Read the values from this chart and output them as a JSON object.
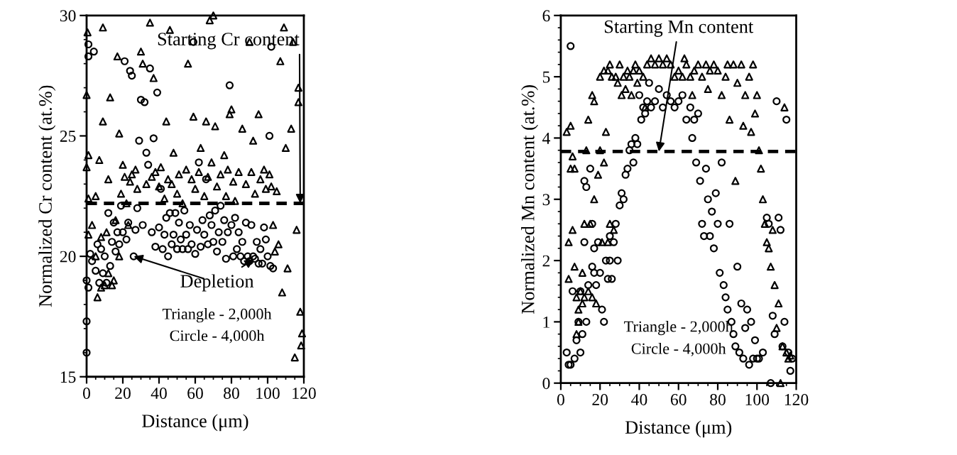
{
  "chart_data": [
    {
      "type": "scatter",
      "xlabel": "Distance (μm)",
      "ylabel": "Normalized Cr content (at.%)",
      "xlim": [
        0,
        120
      ],
      "ylim": [
        15,
        30
      ],
      "xticks": [
        0,
        20,
        40,
        60,
        80,
        100,
        120
      ],
      "yticks": [
        15,
        20,
        25,
        30
      ],
      "grid": false,
      "legend": false,
      "series": [
        {
          "marker": "triangle",
          "color": "#000000",
          "x": [
            0,
            0,
            0.5,
            1,
            1,
            1,
            3,
            5,
            5,
            6,
            7,
            8,
            8,
            9,
            9,
            10,
            11,
            12,
            12,
            13,
            14,
            15,
            16,
            17,
            18,
            18,
            19,
            20,
            21,
            22,
            23,
            24,
            25,
            27,
            28,
            30,
            31,
            33,
            35,
            36,
            37,
            38,
            40,
            41,
            43,
            44,
            45,
            46,
            47,
            48,
            50,
            51,
            53,
            55,
            56,
            58,
            59,
            60,
            62,
            63,
            65,
            66,
            67,
            68,
            69,
            70,
            71,
            72,
            74,
            76,
            77,
            78,
            79,
            80,
            81,
            82,
            84,
            86,
            88,
            90,
            91,
            92,
            93,
            95,
            96,
            98,
            99,
            101,
            102,
            103,
            104,
            105,
            106,
            107,
            108,
            109,
            110,
            111,
            113,
            114,
            115,
            116,
            117,
            117,
            118,
            118.5,
            119
          ],
          "values": [
            26.7,
            23.7,
            29.3,
            24.2,
            22.4,
            20.9,
            21.3,
            20.0,
            22.5,
            18.3,
            24,
            18.7,
            20.8,
            29.5,
            25.6,
            18.8,
            21.0,
            19.3,
            23.2,
            26.6,
            18.8,
            19.0,
            21.5,
            28.3,
            25.1,
            20.0,
            22.6,
            23.8,
            23.3,
            22.2,
            21.3,
            23.1,
            23.4,
            23.6,
            22.8,
            28.5,
            28,
            23.0,
            29.7,
            23.3,
            27.4,
            23.5,
            22.9,
            23.7,
            22.4,
            25.6,
            23.2,
            29.4,
            23.0,
            24.3,
            22.6,
            23.4,
            22.2,
            23.6,
            28,
            23.2,
            25.8,
            22.8,
            23.5,
            24.5,
            22.5,
            25.6,
            23.3,
            29.8,
            23.9,
            30,
            25.4,
            22.9,
            23.4,
            24.2,
            22.5,
            23.6,
            25.9,
            26.1,
            23.1,
            22.3,
            23.5,
            25.3,
            23.0,
            28.9,
            23.5,
            24.8,
            22.6,
            25.9,
            23.2,
            23.6,
            22.8,
            23.4,
            22.9,
            21.3,
            20.2,
            22.7,
            20.5,
            28.1,
            18.5,
            29.5,
            24.5,
            19.5,
            25.3,
            28.9,
            15.8,
            21.1,
            27,
            26.4,
            17.7,
            16.3,
            16.8
          ]
        },
        {
          "marker": "circle",
          "color": "#000000",
          "x": [
            0,
            0,
            0,
            1,
            1,
            1,
            2,
            3,
            4,
            5,
            6,
            7,
            8,
            9,
            10,
            11,
            12,
            13,
            14,
            15,
            16,
            17,
            18,
            19,
            20,
            21,
            22,
            23,
            24,
            25,
            26,
            27,
            28,
            29,
            30,
            31,
            32,
            33,
            34,
            35,
            36,
            37,
            38,
            39,
            40,
            41,
            42,
            43,
            44,
            45,
            46,
            47,
            48,
            49,
            50,
            51,
            52,
            53,
            54,
            55,
            56,
            57,
            58,
            59,
            60,
            61,
            62,
            63,
            64,
            65,
            66,
            67,
            68,
            69,
            70,
            71,
            72,
            73,
            74,
            75,
            76,
            77,
            78,
            79,
            80,
            81,
            82,
            83,
            84,
            85,
            86,
            87,
            88,
            89,
            90,
            91,
            92,
            93,
            94,
            95,
            96,
            97,
            98,
            99,
            100,
            101,
            101.5,
            102,
            103
          ],
          "values": [
            19.0,
            17.3,
            16.0,
            28.8,
            28.3,
            18.7,
            20.1,
            19.8,
            28.5,
            19.4,
            20.5,
            18.9,
            20.3,
            19.3,
            20.0,
            18.9,
            21.8,
            19.6,
            20.6,
            21.4,
            20.2,
            21.0,
            20.5,
            22.1,
            21.0,
            28.1,
            20.7,
            21.4,
            27.7,
            27.5,
            20.0,
            21.1,
            22.0,
            24.8,
            26.5,
            21.3,
            26.4,
            24.3,
            23.8,
            27.8,
            21.0,
            24.9,
            20.4,
            26.8,
            21.2,
            22.8,
            20.3,
            20.9,
            21.6,
            20.0,
            21.8,
            20.5,
            20.9,
            21.8,
            20.3,
            21.4,
            20.7,
            20.3,
            21.9,
            20.9,
            20.3,
            21.3,
            20.5,
            28.9,
            20.1,
            21.1,
            23.9,
            20.4,
            21.5,
            20.9,
            23.2,
            20.5,
            21.7,
            21.3,
            20.6,
            21.9,
            20.2,
            21.0,
            22.1,
            20.6,
            21.5,
            19.9,
            21.0,
            27.1,
            21.3,
            20.0,
            21.6,
            20.3,
            21.0,
            20.0,
            20.6,
            19.8,
            21.4,
            20.0,
            19.8,
            21.3,
            20.0,
            19.9,
            20.6,
            19.7,
            20.3,
            19.7,
            21.2,
            20.7,
            20.0,
            25.0,
            19.6,
            28.7,
            19.5
          ]
        }
      ],
      "ref_lines": [
        {
          "axis": "y",
          "value": 22.2,
          "color": "#000000",
          "line_style": "dashed"
        }
      ],
      "annotations": [
        {
          "text": "Starting Cr content",
          "x": 118,
          "y": 22.2
        },
        {
          "text": "Depletion",
          "x": 26,
          "y": 20.0
        },
        "Triangle - 2,000h",
        "Circle - 4,000h"
      ]
    },
    {
      "type": "scatter",
      "xlabel": "Distance (μm)",
      "ylabel": "Normalized Mn content (at.%)",
      "xlim": [
        0,
        120
      ],
      "ylim": [
        0,
        6
      ],
      "xticks": [
        0,
        20,
        40,
        60,
        80,
        100,
        120
      ],
      "yticks": [
        0,
        1,
        2,
        3,
        4,
        5,
        6
      ],
      "grid": false,
      "legend": false,
      "series": [
        {
          "marker": "triangle",
          "color": "#000000",
          "x": [
            3,
            4,
            4,
            5,
            5,
            6,
            6,
            7,
            7,
            8,
            8,
            9,
            9,
            10,
            11,
            11,
            12,
            12,
            13,
            14,
            14,
            15,
            16,
            16,
            17,
            17,
            18,
            19,
            20,
            20,
            21,
            22,
            22,
            23,
            24,
            24,
            25,
            25,
            26,
            27,
            28,
            29,
            30,
            31,
            32,
            33,
            34,
            35,
            36,
            37,
            38,
            39,
            40,
            42,
            43,
            44,
            46,
            48,
            50,
            52,
            54,
            56,
            58,
            60,
            62,
            63,
            64,
            66,
            67,
            68,
            70,
            72,
            74,
            75,
            76,
            78,
            80,
            82,
            84,
            85,
            86,
            88,
            89,
            90,
            92,
            93,
            94,
            96,
            97,
            98,
            99,
            100,
            101,
            102,
            103,
            104,
            105,
            106,
            107,
            108,
            109,
            110,
            111,
            112,
            113,
            114,
            115,
            116,
            117
          ],
          "values": [
            4.1,
            1.7,
            2.3,
            4.2,
            3.5,
            2.5,
            3.7,
            1.9,
            3.5,
            0.8,
            1.4,
            1.2,
            1.0,
            1.5,
            1.8,
            1.3,
            2.6,
            1.4,
            3.8,
            1.5,
            4.3,
            2.6,
            1.4,
            4.7,
            3.0,
            4.6,
            1.3,
            3.4,
            3.8,
            5.0,
            2.3,
            5.1,
            3.6,
            4.1,
            5.1,
            2.3,
            5.2,
            2.6,
            5.0,
            2.5,
            5.0,
            4.9,
            5.2,
            4.7,
            5.0,
            4.8,
            5.1,
            5.0,
            4.7,
            5.1,
            5.2,
            4.9,
            5.1,
            5.0,
            4.5,
            5.2,
            5.3,
            5.2,
            5.3,
            5.2,
            5.3,
            5.2,
            5.0,
            5.1,
            5.0,
            5.3,
            5.2,
            5.0,
            4.7,
            5.1,
            5.2,
            5.0,
            5.2,
            4.8,
            5.1,
            5.2,
            5.1,
            4.7,
            5.0,
            5.2,
            4.3,
            5.2,
            3.3,
            4.9,
            5.2,
            4.2,
            4.7,
            5.0,
            4.1,
            5.2,
            4.4,
            4.7,
            3.8,
            3.5,
            3.0,
            2.6,
            2.3,
            2.2,
            1.9,
            2.5,
            1.6,
            0.9,
            1.3,
            0.0,
            0.6,
            4.5,
            0.5,
            0.4,
            0.45
          ]
        },
        {
          "marker": "circle",
          "color": "#000000",
          "x": [
            3,
            4,
            5,
            5,
            6,
            7,
            8,
            9,
            10,
            10,
            11,
            12,
            12,
            13,
            13,
            14,
            15,
            16,
            16,
            17,
            17,
            18,
            19,
            20,
            21,
            22,
            23,
            24,
            25,
            25,
            26,
            27,
            28,
            29,
            30,
            31,
            32,
            33,
            34,
            35,
            36,
            37,
            38,
            39,
            40,
            41,
            42,
            43,
            44,
            45,
            46,
            48,
            50,
            52,
            54,
            56,
            58,
            60,
            62,
            64,
            66,
            67,
            68,
            69,
            70,
            71,
            72,
            73,
            74,
            75,
            76,
            77,
            78,
            79,
            80,
            81,
            82,
            83,
            84,
            85,
            86,
            87,
            88,
            89,
            90,
            91,
            92,
            93,
            94,
            95,
            96,
            97,
            98,
            99,
            100,
            101,
            103,
            105,
            106,
            107,
            108,
            109,
            110,
            111,
            112,
            113,
            114,
            115,
            116,
            117,
            118
          ],
          "values": [
            0.5,
            0.3,
            5.5,
            0.3,
            1.5,
            0.4,
            0.7,
            1.0,
            0.5,
            1.5,
            0.8,
            2.3,
            3.3,
            1.0,
            3.2,
            1.6,
            3.5,
            1.9,
            2.6,
            2.2,
            1.8,
            1.6,
            2.3,
            1.8,
            1.2,
            1.0,
            2.0,
            1.7,
            2.0,
            2.4,
            1.7,
            2.3,
            2.6,
            2.0,
            2.9,
            3.1,
            3.0,
            3.4,
            3.5,
            3.8,
            3.9,
            3.6,
            4.0,
            3.9,
            4.7,
            4.3,
            4.5,
            4.4,
            4.6,
            4.9,
            4.5,
            4.6,
            4.8,
            4.5,
            4.7,
            4.6,
            4.5,
            4.6,
            4.7,
            4.3,
            4.5,
            4.0,
            4.3,
            3.6,
            4.4,
            3.3,
            2.6,
            2.4,
            3.5,
            3.0,
            2.4,
            2.8,
            2.2,
            3.1,
            2.6,
            1.8,
            3.6,
            1.6,
            1.4,
            1.2,
            2.6,
            1.0,
            0.8,
            0.6,
            1.9,
            0.5,
            1.3,
            0.4,
            0.9,
            1.2,
            0.3,
            1.0,
            0.4,
            0.7,
            0.4,
            0.4,
            0.5,
            2.7,
            2.6,
            0.0,
            1.1,
            0.8,
            4.6,
            2.7,
            2.5,
            0.6,
            1.0,
            4.3,
            0.5,
            0.2,
            0.4
          ]
        }
      ],
      "ref_lines": [
        {
          "axis": "y",
          "value": 3.78,
          "color": "#000000",
          "line_style": "dashed"
        }
      ],
      "annotations": [
        {
          "text": "Starting Mn content",
          "x": 50,
          "y": 3.78
        },
        "Triangle - 2,000h",
        "Circle - 4,000h"
      ]
    }
  ]
}
